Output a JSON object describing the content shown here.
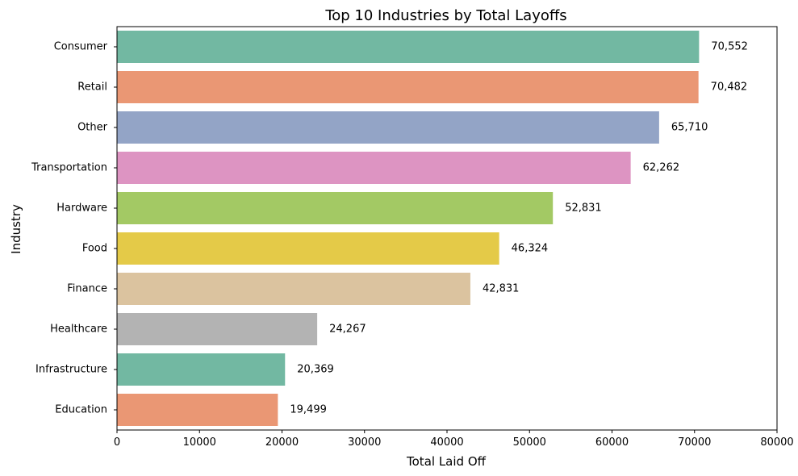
{
  "chart_data": {
    "type": "bar",
    "orientation": "horizontal",
    "title": "Top 10 Industries by Total Layoffs",
    "xlabel": "Total Laid Off",
    "ylabel": "Industry",
    "xlim": [
      0,
      80000
    ],
    "xticks": [
      0,
      10000,
      20000,
      30000,
      40000,
      50000,
      60000,
      70000,
      80000
    ],
    "xtick_labels": [
      "0",
      "10000",
      "20000",
      "30000",
      "40000",
      "50000",
      "60000",
      "70000",
      "80000"
    ],
    "grid": false,
    "legend": "none",
    "categories": [
      "Consumer",
      "Retail",
      "Other",
      "Transportation",
      "Hardware",
      "Food",
      "Finance",
      "Healthcare",
      "Infrastructure",
      "Education"
    ],
    "values": [
      70552,
      70482,
      65710,
      62262,
      52831,
      46324,
      42831,
      24267,
      20369,
      19499
    ],
    "value_labels": [
      "70,552",
      "70,482",
      "65,710",
      "62,262",
      "52,831",
      "46,324",
      "42,831",
      "24,267",
      "20,369",
      "19,499"
    ],
    "colors": [
      "#72b8a2",
      "#ea9774",
      "#93a4c6",
      "#dd94c2",
      "#a3c964",
      "#e4ca48",
      "#dbc39f",
      "#b3b3b3",
      "#72b8a2",
      "#ea9774"
    ]
  }
}
